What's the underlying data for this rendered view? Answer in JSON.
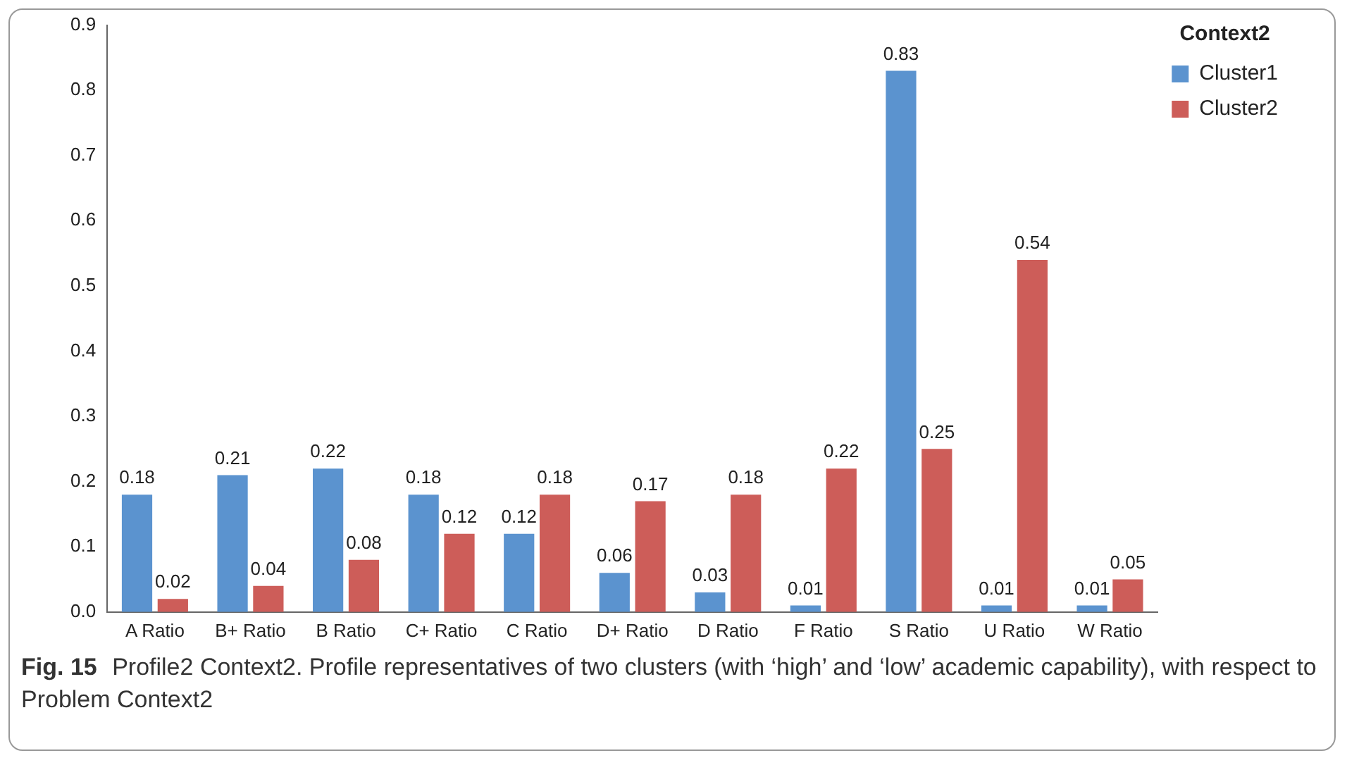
{
  "chart_data": {
    "type": "bar",
    "categories": [
      "A Ratio",
      "B+ Ratio",
      "B Ratio",
      "C+ Ratio",
      "C Ratio",
      "D+ Ratio",
      "D Ratio",
      "F Ratio",
      "S Ratio",
      "U Ratio",
      "W Ratio"
    ],
    "series": [
      {
        "name": "Cluster1",
        "color": "#5b93cf",
        "values": [
          0.18,
          0.21,
          0.22,
          0.18,
          0.12,
          0.06,
          0.03,
          0.01,
          0.83,
          0.01,
          0.01
        ]
      },
      {
        "name": "Cluster2",
        "color": "#cd5d59",
        "values": [
          0.02,
          0.04,
          0.08,
          0.12,
          0.18,
          0.17,
          0.18,
          0.22,
          0.25,
          0.54,
          0.05
        ]
      }
    ],
    "ylim": [
      0,
      0.9
    ],
    "yticks": [
      {
        "value": 0,
        "label": "0.0"
      },
      0.1,
      0.2,
      0.3,
      0.4,
      0.5,
      0.6,
      0.7,
      0.8,
      0.9
    ],
    "grid": false,
    "legend": "top right",
    "legend_title": "Context2",
    "data_labels": true,
    "annotations": [
      "Fig. 15",
      "Profile2 Context2. Profile representatives of two clusters (with ‘high’ and ‘low’ academic capability), with respect to Problem Context2"
    ]
  }
}
